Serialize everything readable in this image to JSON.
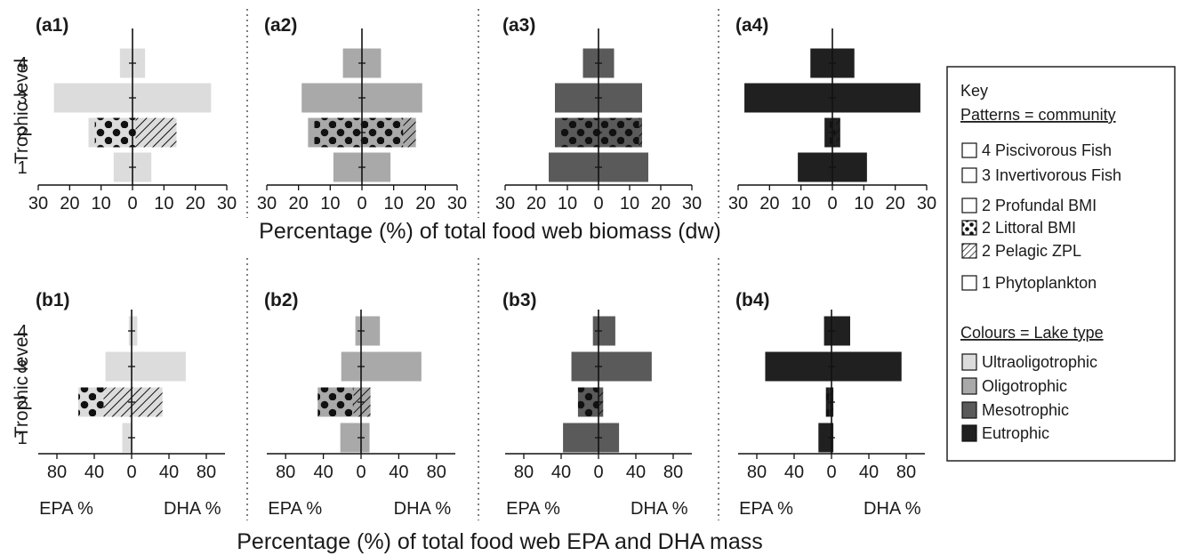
{
  "colors": {
    "ultraoligotrophic": "#dcdcdc",
    "oligotrophic": "#a9a9a9",
    "mesotrophic": "#5a5a5a",
    "eutrophic": "#202020"
  },
  "xlabel_top": "Percentage (%) of total food web biomass (dw)",
  "xlabel_bottom": "Percentage (%) of total food web EPA and DHA mass",
  "ylabel": "Trophic level",
  "epa_label": "EPA %",
  "dha_label": "DHA %",
  "key": {
    "title": "Key",
    "patterns_title": "Patterns = community",
    "patterns": [
      {
        "label": "4 Piscivorous Fish",
        "pattern": "plain"
      },
      {
        "label": "3 Invertivorous Fish",
        "pattern": "plain"
      },
      {
        "label": "2 Profundal BMI",
        "pattern": "plain"
      },
      {
        "label": "2 Littoral BMI",
        "pattern": "dots"
      },
      {
        "label": "2 Pelagic ZPL",
        "pattern": "hatch"
      },
      {
        "label": "1 Phytoplankton",
        "pattern": "plain"
      }
    ],
    "colours_title": "Colours = Lake type",
    "colours": [
      {
        "label": "Ultraoligotrophic",
        "color": "#dcdcdc"
      },
      {
        "label": "Oligotrophic",
        "color": "#a9a9a9"
      },
      {
        "label": "Mesotrophic",
        "color": "#5a5a5a"
      },
      {
        "label": "Eutrophic",
        "color": "#202020"
      }
    ]
  },
  "chart_data": [
    {
      "id": "a1",
      "label": "(a1)",
      "type": "bar",
      "lake": "ultraoligotrophic",
      "xlim": [
        -30,
        30
      ],
      "xticks": [
        -30,
        -20,
        -10,
        0,
        10,
        20,
        30
      ],
      "xtick_labels": [
        "30",
        "20",
        "10",
        "0",
        "10",
        "20",
        "30"
      ],
      "yticks": [
        1,
        2,
        3,
        4
      ],
      "levels": [
        {
          "level": 4,
          "segments": [
            {
              "from": -4,
              "to": 4,
              "pattern": "plain"
            }
          ]
        },
        {
          "level": 3,
          "segments": [
            {
              "from": -25,
              "to": 25,
              "pattern": "plain"
            }
          ]
        },
        {
          "level": 2,
          "segments": [
            {
              "from": -14,
              "to": -12,
              "pattern": "plain"
            },
            {
              "from": -12,
              "to": 1,
              "pattern": "dots"
            },
            {
              "from": 1,
              "to": 14,
              "pattern": "hatch"
            }
          ]
        },
        {
          "level": 1,
          "segments": [
            {
              "from": -6,
              "to": 6,
              "pattern": "plain"
            }
          ]
        }
      ]
    },
    {
      "id": "a2",
      "label": "(a2)",
      "type": "bar",
      "lake": "oligotrophic",
      "xlim": [
        -30,
        30
      ],
      "xticks": [
        -30,
        -20,
        -10,
        0,
        10,
        20,
        30
      ],
      "xtick_labels": [
        "30",
        "20",
        "10",
        "0",
        "10",
        "20",
        "30"
      ],
      "yticks": [
        1,
        2,
        3,
        4
      ],
      "levels": [
        {
          "level": 4,
          "segments": [
            {
              "from": -6,
              "to": 6,
              "pattern": "plain"
            }
          ]
        },
        {
          "level": 3,
          "segments": [
            {
              "from": -19,
              "to": 19,
              "pattern": "plain"
            }
          ]
        },
        {
          "level": 2,
          "segments": [
            {
              "from": -17,
              "to": -15,
              "pattern": "plain"
            },
            {
              "from": -15,
              "to": 13,
              "pattern": "dots"
            },
            {
              "from": 13,
              "to": 17,
              "pattern": "hatch"
            }
          ]
        },
        {
          "level": 1,
          "segments": [
            {
              "from": -9,
              "to": 9,
              "pattern": "plain"
            }
          ]
        }
      ]
    },
    {
      "id": "a3",
      "label": "(a3)",
      "type": "bar",
      "lake": "mesotrophic",
      "xlim": [
        -30,
        30
      ],
      "xticks": [
        -30,
        -20,
        -10,
        0,
        10,
        20,
        30
      ],
      "xtick_labels": [
        "30",
        "20",
        "10",
        "0",
        "10",
        "20",
        "30"
      ],
      "yticks": [
        1,
        2,
        3,
        4
      ],
      "levels": [
        {
          "level": 4,
          "segments": [
            {
              "from": -5,
              "to": 5,
              "pattern": "plain"
            }
          ]
        },
        {
          "level": 3,
          "segments": [
            {
              "from": -14,
              "to": 14,
              "pattern": "plain"
            }
          ]
        },
        {
          "level": 2,
          "segments": [
            {
              "from": -14,
              "to": -12,
              "pattern": "plain"
            },
            {
              "from": -12,
              "to": 13,
              "pattern": "dots"
            },
            {
              "from": 13,
              "to": 14,
              "pattern": "hatch"
            }
          ]
        },
        {
          "level": 1,
          "segments": [
            {
              "from": -16,
              "to": 16,
              "pattern": "plain"
            }
          ]
        }
      ]
    },
    {
      "id": "a4",
      "label": "(a4)",
      "type": "bar",
      "lake": "eutrophic",
      "xlim": [
        -30,
        30
      ],
      "xticks": [
        -30,
        -20,
        -10,
        0,
        10,
        20,
        30
      ],
      "xtick_labels": [
        "30",
        "20",
        "10",
        "0",
        "10",
        "20",
        "30"
      ],
      "yticks": [
        1,
        2,
        3,
        4
      ],
      "levels": [
        {
          "level": 4,
          "segments": [
            {
              "from": -7,
              "to": 7,
              "pattern": "plain"
            }
          ]
        },
        {
          "level": 3,
          "segments": [
            {
              "from": -28,
              "to": 28,
              "pattern": "plain"
            }
          ]
        },
        {
          "level": 2,
          "segments": [
            {
              "from": -2.5,
              "to": -1,
              "pattern": "plain"
            },
            {
              "from": -1,
              "to": 1,
              "pattern": "dots"
            },
            {
              "from": 1,
              "to": 2.5,
              "pattern": "hatch"
            }
          ]
        },
        {
          "level": 1,
          "segments": [
            {
              "from": -11,
              "to": 11,
              "pattern": "plain"
            }
          ]
        }
      ]
    },
    {
      "id": "b1",
      "label": "(b1)",
      "type": "bar",
      "lake": "ultraoligotrophic",
      "xlim": [
        -100,
        100
      ],
      "xticks": [
        -80,
        -40,
        0,
        40,
        80
      ],
      "xtick_labels": [
        "80",
        "40",
        "0",
        "40",
        "80"
      ],
      "yticks": [
        1,
        2,
        3,
        4
      ],
      "levels": [
        {
          "level": 4,
          "segments": [
            {
              "from": -3,
              "to": 6,
              "pattern": "plain"
            }
          ]
        },
        {
          "level": 3,
          "segments": [
            {
              "from": -28,
              "to": 58,
              "pattern": "plain"
            }
          ]
        },
        {
          "level": 2,
          "segments": [
            {
              "from": -57,
              "to": -30,
              "pattern": "dots"
            },
            {
              "from": -30,
              "to": 33,
              "pattern": "hatch"
            }
          ]
        },
        {
          "level": 1,
          "segments": [
            {
              "from": -10,
              "to": 0,
              "pattern": "plain"
            }
          ]
        }
      ]
    },
    {
      "id": "b2",
      "label": "(b2)",
      "type": "bar",
      "lake": "oligotrophic",
      "xlim": [
        -100,
        100
      ],
      "xticks": [
        -80,
        -40,
        0,
        40,
        80
      ],
      "xtick_labels": [
        "80",
        "40",
        "0",
        "40",
        "80"
      ],
      "yticks": [
        1,
        2,
        3,
        4
      ],
      "levels": [
        {
          "level": 4,
          "segments": [
            {
              "from": -6,
              "to": 20,
              "pattern": "plain"
            }
          ]
        },
        {
          "level": 3,
          "segments": [
            {
              "from": -21,
              "to": 64,
              "pattern": "plain"
            }
          ]
        },
        {
          "level": 2,
          "segments": [
            {
              "from": -46,
              "to": -8,
              "pattern": "dots"
            },
            {
              "from": -8,
              "to": 10,
              "pattern": "hatch"
            }
          ]
        },
        {
          "level": 1,
          "segments": [
            {
              "from": -22,
              "to": 9,
              "pattern": "plain"
            }
          ]
        }
      ]
    },
    {
      "id": "b3",
      "label": "(b3)",
      "type": "bar",
      "lake": "mesotrophic",
      "xlim": [
        -100,
        100
      ],
      "xticks": [
        -80,
        -40,
        0,
        40,
        80
      ],
      "xtick_labels": [
        "80",
        "40",
        "0",
        "40",
        "80"
      ],
      "yticks": [
        1,
        2,
        3,
        4
      ],
      "levels": [
        {
          "level": 4,
          "segments": [
            {
              "from": -6,
              "to": 18,
              "pattern": "plain"
            }
          ]
        },
        {
          "level": 3,
          "segments": [
            {
              "from": -29,
              "to": 57,
              "pattern": "plain"
            }
          ]
        },
        {
          "level": 2,
          "segments": [
            {
              "from": -22,
              "to": 0,
              "pattern": "dots"
            },
            {
              "from": 0,
              "to": 5,
              "pattern": "hatch"
            }
          ]
        },
        {
          "level": 1,
          "segments": [
            {
              "from": -38,
              "to": 22,
              "pattern": "plain"
            }
          ]
        }
      ]
    },
    {
      "id": "b4",
      "label": "(b4)",
      "type": "bar",
      "lake": "eutrophic",
      "xlim": [
        -100,
        100
      ],
      "xticks": [
        -80,
        -40,
        0,
        40,
        80
      ],
      "xtick_labels": [
        "80",
        "40",
        "0",
        "40",
        "80"
      ],
      "yticks": [
        1,
        2,
        3,
        4
      ],
      "levels": [
        {
          "level": 4,
          "segments": [
            {
              "from": -8,
              "to": 20,
              "pattern": "plain"
            }
          ]
        },
        {
          "level": 3,
          "segments": [
            {
              "from": -71,
              "to": 75,
              "pattern": "plain"
            }
          ]
        },
        {
          "level": 2,
          "segments": [
            {
              "from": -6,
              "to": -2,
              "pattern": "dots"
            },
            {
              "from": -2,
              "to": 2,
              "pattern": "hatch"
            }
          ]
        },
        {
          "level": 1,
          "segments": [
            {
              "from": -14,
              "to": 2,
              "pattern": "plain"
            }
          ]
        }
      ]
    }
  ]
}
